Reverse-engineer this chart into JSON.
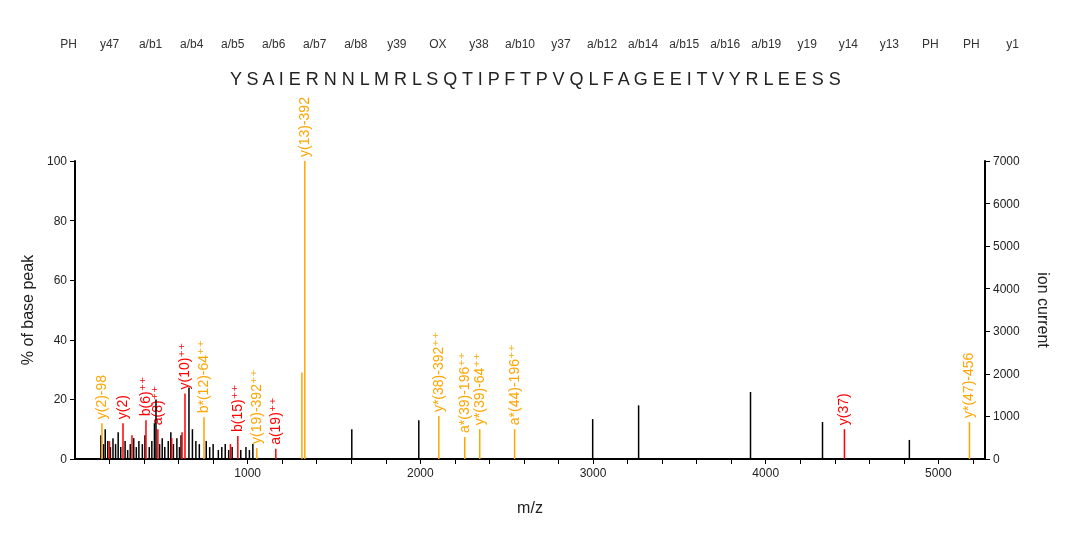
{
  "chart_data": {
    "type": "bar",
    "subtitle": "Y S A I E R N N L M R L S Q T I P F T P V Q L F A G E E I T V Y R L E E S S",
    "xlabel": "m/z",
    "ylabel": "% of base peak",
    "y2label": "ion current",
    "xlim": [
      0,
      5270
    ],
    "xticks": [
      {
        "value": 200,
        "label": null
      },
      {
        "value": 400,
        "label": null
      },
      {
        "value": 600,
        "label": null
      },
      {
        "value": 800,
        "label": null
      },
      1000,
      {
        "value": 1200,
        "label": null
      },
      {
        "value": 1400,
        "label": null
      },
      {
        "value": 1600,
        "label": null
      },
      {
        "value": 1800,
        "label": null
      },
      2000,
      {
        "value": 2200,
        "label": null
      },
      {
        "value": 2400,
        "label": null
      },
      {
        "value": 2600,
        "label": null
      },
      {
        "value": 2800,
        "label": null
      },
      3000,
      {
        "value": 3200,
        "label": null
      },
      {
        "value": 3400,
        "label": null
      },
      {
        "value": 3600,
        "label": null
      },
      {
        "value": 3800,
        "label": null
      },
      4000,
      {
        "value": 4200,
        "label": null
      },
      {
        "value": 4400,
        "label": null
      },
      {
        "value": 4600,
        "label": null
      },
      {
        "value": 4800,
        "label": null
      },
      5000,
      {
        "value": 5200,
        "label": null
      }
    ],
    "ylim": [
      0,
      100
    ],
    "yticks": [
      0,
      20,
      40,
      60,
      80,
      100
    ],
    "y2lim": [
      0,
      7000
    ],
    "y2ticks": [
      0,
      1000,
      2000,
      3000,
      4000,
      5000,
      6000,
      7000
    ],
    "grid": false,
    "series": [
      {
        "color": "#000000",
        "x": [
          150,
          165,
          175,
          190,
          205,
          220,
          235,
          250,
          265,
          290,
          305,
          320,
          340,
          355,
          370,
          390,
          405,
          430,
          445,
          460,
          469,
          490,
          505,
          520,
          540,
          555,
          570,
          590,
          605,
          614,
          660,
          680,
          700,
          720,
          760,
          780,
          800,
          830,
          850,
          870,
          890,
          910,
          960,
          990,
          1010,
          1030,
          1603,
          1991,
          2998,
          3264,
          3912,
          4329,
          4832
        ],
        "values": [
          8,
          5,
          10,
          6,
          4,
          7,
          5,
          9,
          4,
          6,
          3,
          5,
          7,
          4,
          6,
          5,
          8,
          4,
          6,
          12,
          20,
          5,
          7,
          4,
          6,
          9,
          5,
          7,
          4,
          8,
          24,
          10,
          6,
          5,
          6,
          4,
          5,
          3,
          4,
          5,
          3,
          4,
          3,
          4,
          3,
          5,
          10,
          13,
          13.4,
          18,
          22.5,
          12.4,
          6.4
        ]
      },
      {
        "color": "#ff0000",
        "x": [
          200,
          278,
          330,
          411,
          480,
          560,
          620,
          637,
          900,
          943,
          1163,
          4456
        ],
        "values": [
          6,
          12,
          8,
          13,
          10,
          7,
          9,
          22,
          5,
          7.7,
          3.4,
          10
        ]
      },
      {
        "color": "#ffa500",
        "x": [
          156,
          747,
          1053,
          1314,
          1331,
          2107,
          2257,
          2344,
          2546,
          5180
        ],
        "values": [
          12,
          14,
          3.7,
          29,
          100,
          14.4,
          7.4,
          10,
          10,
          12.4
        ]
      }
    ],
    "annotations": [
      "PH",
      "y47",
      "a/b1",
      "a/b4",
      "a/b5",
      "a/b6",
      "a/b7",
      "a/b8",
      "y39",
      "OX",
      "y38",
      "a/b10",
      "y37",
      "a/b12",
      "a/b14",
      "a/b15",
      "a/b16",
      "a/b19",
      "y19",
      "y14",
      "y13",
      "PH",
      "PH",
      "y1",
      {
        "text": "y(2)-98",
        "x": 156,
        "y": 12
      },
      {
        "text": "y(2)",
        "x": 278,
        "y": 12
      },
      {
        "text": "b(6)⁺⁺",
        "x": 411,
        "y": 13
      },
      {
        "text": "a(8)⁺⁺",
        "x": 480,
        "y": 10
      },
      {
        "text": "y(10)⁺⁺",
        "x": 637,
        "y": 22
      },
      {
        "text": "b*(12)-64⁺⁺",
        "x": 747,
        "y": 14
      },
      {
        "text": "b(15)⁺⁺",
        "x": 943,
        "y": 7.7
      },
      {
        "text": "y(19)-392⁺⁺",
        "x": 1053,
        "y": 3.7
      },
      {
        "text": "a(19)⁺⁺",
        "x": 1163,
        "y": 3.4
      },
      {
        "text": "y(13)-392",
        "x": 1331,
        "y": 100
      },
      {
        "text": "y*(38)-392⁺⁺",
        "x": 2107,
        "y": 14.4
      },
      {
        "text": "a*(39)-196⁺⁺",
        "x": 2257,
        "y": 7.4
      },
      {
        "text": "y*(39)-64⁺⁺",
        "x": 2344,
        "y": 10
      },
      {
        "text": "a*(44)-196⁺⁺",
        "x": 2546,
        "y": 10
      },
      {
        "text": "y(37)",
        "x": 4456,
        "y": 10
      },
      {
        "text": "y*(47)-456",
        "x": 5180,
        "y": 12.4
      }
    ]
  }
}
